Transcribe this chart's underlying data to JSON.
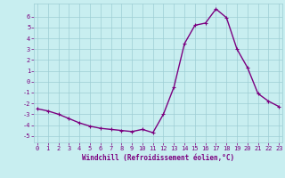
{
  "hours": [
    0,
    1,
    2,
    3,
    4,
    5,
    6,
    7,
    8,
    9,
    10,
    11,
    12,
    13,
    14,
    15,
    16,
    17,
    18,
    19,
    20,
    21,
    22,
    23
  ],
  "values": [
    -2.5,
    -2.7,
    -3.0,
    -3.4,
    -3.8,
    -4.1,
    -4.3,
    -4.4,
    -4.5,
    -4.6,
    -4.4,
    -4.7,
    -3.0,
    -0.5,
    3.5,
    5.2,
    5.4,
    6.7,
    5.9,
    3.0,
    1.3,
    -1.1,
    -1.8,
    -2.3
  ],
  "line_color": "#7b0080",
  "marker": "+",
  "marker_size": 3,
  "background_color": "#c8eef0",
  "grid_color": "#9dcdd4",
  "ylabel_ticks": [
    -5,
    -4,
    -3,
    -2,
    -1,
    0,
    1,
    2,
    3,
    4,
    5,
    6
  ],
  "ylim": [
    -5.6,
    7.2
  ],
  "xlim": [
    -0.3,
    23.3
  ],
  "xlabel": "Windchill (Refroidissement éolien,°C)",
  "line_width": 1.0,
  "tick_fontsize": 5.0,
  "xlabel_fontsize": 5.5
}
